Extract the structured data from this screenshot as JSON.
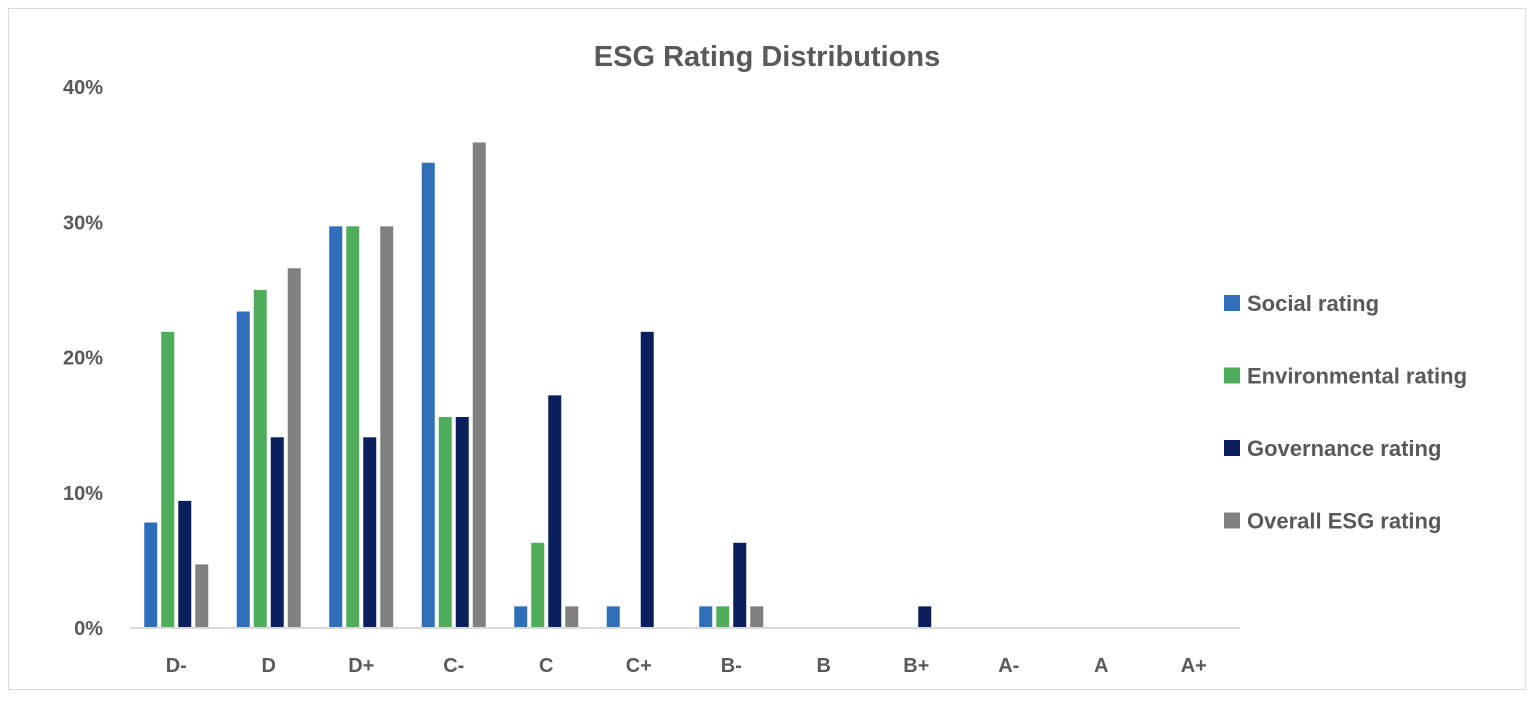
{
  "chart_data": {
    "type": "bar",
    "title": "ESG Rating Distributions",
    "xlabel": "",
    "ylabel": "",
    "categories": [
      "D-",
      "D",
      "D+",
      "C-",
      "C",
      "C+",
      "B-",
      "B",
      "B+",
      "A-",
      "A",
      "A+"
    ],
    "ylim": [
      0,
      40
    ],
    "yticks": [
      0,
      10,
      20,
      30,
      40
    ],
    "ytick_labels": [
      "0%",
      "10%",
      "20%",
      "30%",
      "40%"
    ],
    "grid": false,
    "legend_position": "right",
    "series": [
      {
        "name": "Social rating",
        "color": "#2F6FBA",
        "values": [
          7.8,
          23.4,
          29.7,
          34.4,
          1.6,
          1.6,
          1.6,
          0,
          0,
          0,
          0,
          0
        ]
      },
      {
        "name": "Environmental rating",
        "color": "#4EAC5B",
        "values": [
          21.9,
          25.0,
          29.7,
          15.6,
          6.3,
          0,
          1.6,
          0,
          0,
          0,
          0,
          0
        ]
      },
      {
        "name": "Governance rating",
        "color": "#0A1F5C",
        "values": [
          9.4,
          14.1,
          14.1,
          15.6,
          17.2,
          21.9,
          6.3,
          0,
          1.6,
          0,
          0,
          0
        ]
      },
      {
        "name": "Overall ESG rating",
        "color": "#808080",
        "values": [
          4.7,
          26.6,
          29.7,
          35.9,
          1.6,
          0,
          1.6,
          0,
          0,
          0,
          0,
          0
        ]
      }
    ]
  }
}
